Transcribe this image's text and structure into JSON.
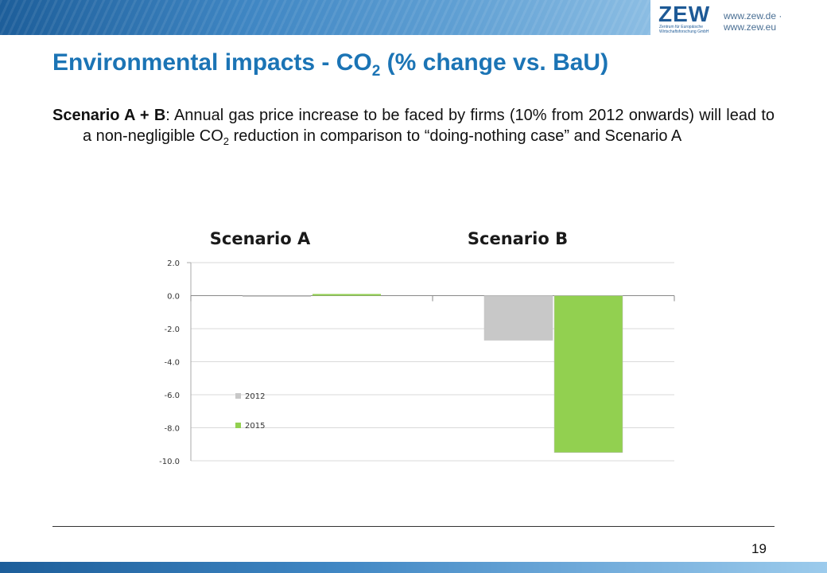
{
  "header": {
    "logo_text": "ZEW",
    "logo_subtitle": "Zentrum für Europäische Wirtschaftsforschung GmbH",
    "website": "www.zew.de · www.zew.eu"
  },
  "title": {
    "main": "Environmental impacts  - CO",
    "sub": "2",
    "rest": " (% change vs. BaU)"
  },
  "paragraph": {
    "bold": "Scenario A + B",
    "text1": ": Annual gas price increase to be faced by firms (10% from 2012 onwards) will lead to a non-negligible CO",
    "sub": "2",
    "text2": " reduction in comparison to “doing-nothing case”  and Scenario A"
  },
  "page_number": "19",
  "chart_data": {
    "type": "bar",
    "categories": [
      "Scenario A",
      "Scenario B"
    ],
    "series": [
      {
        "name": "2012",
        "values": [
          0.0,
          -2.7
        ],
        "color": "#c8c8c8"
      },
      {
        "name": "2015",
        "values": [
          0.1,
          -9.5
        ],
        "color": "#92d050"
      }
    ],
    "ylim": [
      -10,
      2
    ],
    "yticks": [
      "2.0",
      "0.0",
      "-2.0",
      "-4.0",
      "-6.0",
      "-8.0",
      "-10.0"
    ],
    "ytick_values": [
      2,
      0,
      -2,
      -4,
      -6,
      -8,
      -10
    ],
    "grid": true,
    "legend_position": "bottom-left inside"
  }
}
